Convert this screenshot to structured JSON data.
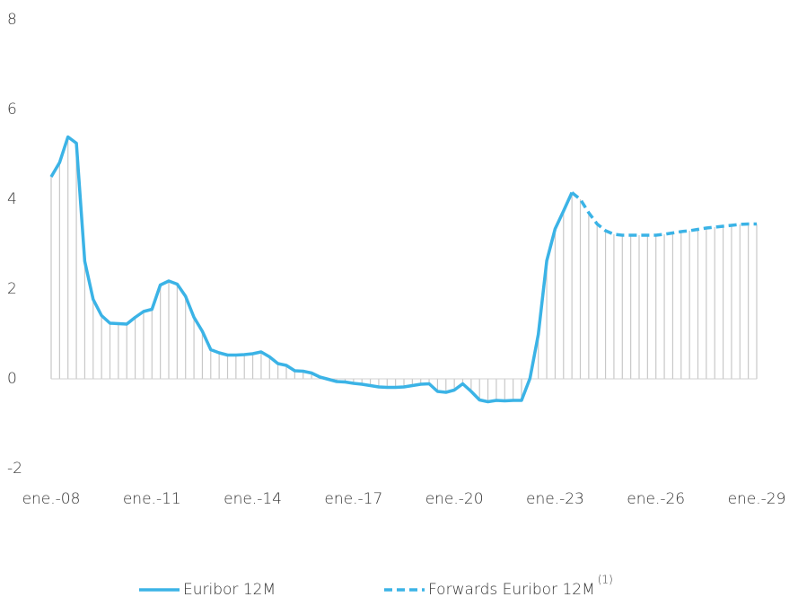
{
  "chart_data": {
    "type": "line",
    "x": [
      "2008-01",
      "2008-04",
      "2008-07",
      "2008-10",
      "2009-01",
      "2009-04",
      "2009-07",
      "2009-10",
      "2010-01",
      "2010-04",
      "2010-07",
      "2010-10",
      "2011-01",
      "2011-04",
      "2011-07",
      "2011-10",
      "2012-01",
      "2012-04",
      "2012-07",
      "2012-10",
      "2013-01",
      "2013-04",
      "2013-07",
      "2013-10",
      "2014-01",
      "2014-04",
      "2014-07",
      "2014-10",
      "2015-01",
      "2015-04",
      "2015-07",
      "2015-10",
      "2016-01",
      "2016-04",
      "2016-07",
      "2016-10",
      "2017-01",
      "2017-04",
      "2017-07",
      "2017-10",
      "2018-01",
      "2018-04",
      "2018-07",
      "2018-10",
      "2019-01",
      "2019-04",
      "2019-07",
      "2019-10",
      "2020-01",
      "2020-04",
      "2020-07",
      "2020-10",
      "2021-01",
      "2021-04",
      "2021-07",
      "2021-10",
      "2022-01",
      "2022-04",
      "2022-07",
      "2022-10",
      "2023-01",
      "2023-04",
      "2023-07",
      "2023-10",
      "2024-01",
      "2024-04",
      "2024-07",
      "2024-10",
      "2025-01",
      "2025-04",
      "2025-07",
      "2025-10",
      "2026-01",
      "2026-04",
      "2026-07",
      "2026-10",
      "2027-01",
      "2027-04",
      "2027-07",
      "2027-10",
      "2028-01",
      "2028-04",
      "2028-07",
      "2028-10",
      "2029-01"
    ],
    "series": [
      {
        "name": "Euribor 12M",
        "color": "#3bb3e6",
        "dashed": false,
        "values": [
          4.5,
          4.82,
          5.39,
          5.25,
          2.62,
          1.77,
          1.41,
          1.24,
          1.23,
          1.22,
          1.37,
          1.5,
          1.55,
          2.09,
          2.18,
          2.11,
          1.84,
          1.37,
          1.06,
          0.65,
          0.58,
          0.53,
          0.53,
          0.54,
          0.56,
          0.6,
          0.49,
          0.34,
          0.3,
          0.18,
          0.17,
          0.13,
          0.04,
          -0.01,
          -0.06,
          -0.07,
          -0.1,
          -0.12,
          -0.15,
          -0.18,
          -0.19,
          -0.19,
          -0.18,
          -0.15,
          -0.12,
          -0.11,
          -0.28,
          -0.3,
          -0.25,
          -0.11,
          -0.28,
          -0.47,
          -0.51,
          -0.48,
          -0.49,
          -0.48,
          -0.48,
          0.01,
          0.99,
          2.63,
          3.34,
          3.74,
          4.15,
          null,
          null,
          null,
          null,
          null,
          null,
          null,
          null,
          null,
          null,
          null,
          null,
          null,
          null,
          null,
          null,
          null,
          null,
          null,
          null,
          null,
          null
        ]
      },
      {
        "name": "Forwards Euribor 12M",
        "note": "(1)",
        "color": "#3bb3e6",
        "dashed": true,
        "values": [
          null,
          null,
          null,
          null,
          null,
          null,
          null,
          null,
          null,
          null,
          null,
          null,
          null,
          null,
          null,
          null,
          null,
          null,
          null,
          null,
          null,
          null,
          null,
          null,
          null,
          null,
          null,
          null,
          null,
          null,
          null,
          null,
          null,
          null,
          null,
          null,
          null,
          null,
          null,
          null,
          null,
          null,
          null,
          null,
          null,
          null,
          null,
          null,
          null,
          null,
          null,
          null,
          null,
          null,
          null,
          null,
          null,
          null,
          null,
          null,
          null,
          null,
          4.15,
          4.0,
          3.7,
          3.45,
          3.3,
          3.22,
          3.2,
          3.2,
          3.2,
          3.2,
          3.2,
          3.22,
          3.25,
          3.28,
          3.3,
          3.33,
          3.36,
          3.38,
          3.4,
          3.42,
          3.44,
          3.45,
          3.45
        ]
      }
    ],
    "area_color": "#c8c8c8",
    "xlim": [
      "2008-01",
      "2029-01"
    ],
    "xticks": [
      {
        "value": "2008-01",
        "label": "ene.-08"
      },
      {
        "value": "2011-01",
        "label": "ene.-11"
      },
      {
        "value": "2014-01",
        "label": "ene.-14"
      },
      {
        "value": "2017-01",
        "label": "ene.-17"
      },
      {
        "value": "2020-01",
        "label": "ene.-20"
      },
      {
        "value": "2023-01",
        "label": "ene.-23"
      },
      {
        "value": "2026-01",
        "label": "ene.-26"
      },
      {
        "value": "2029-01",
        "label": "ene.-29"
      }
    ],
    "ylim": [
      -2,
      8
    ],
    "yticks": [
      -2,
      0,
      2,
      4,
      6,
      8
    ],
    "legend": "bottom"
  }
}
